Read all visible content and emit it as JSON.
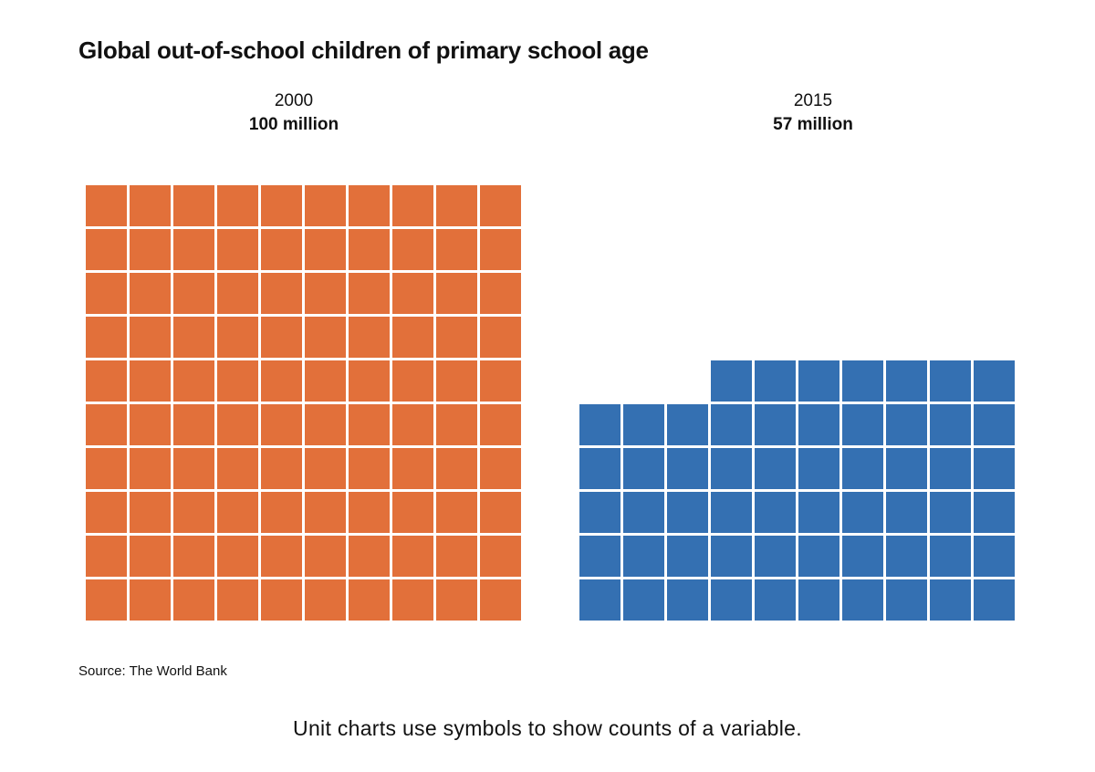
{
  "chart_data": {
    "type": "unit",
    "title": "Global out-of-school children of primary school age",
    "unit_value_millions": 1,
    "groups": [
      {
        "label": "2000",
        "value_label": "100 million",
        "value": 100,
        "columns": 10,
        "color": "#e2703a"
      },
      {
        "label": "2015",
        "value_label": "57 million",
        "value": 57,
        "columns": 10,
        "color": "#3470b2"
      }
    ],
    "source": "Source: The World Bank"
  },
  "caption": "Unit charts use symbols to show counts of a variable."
}
